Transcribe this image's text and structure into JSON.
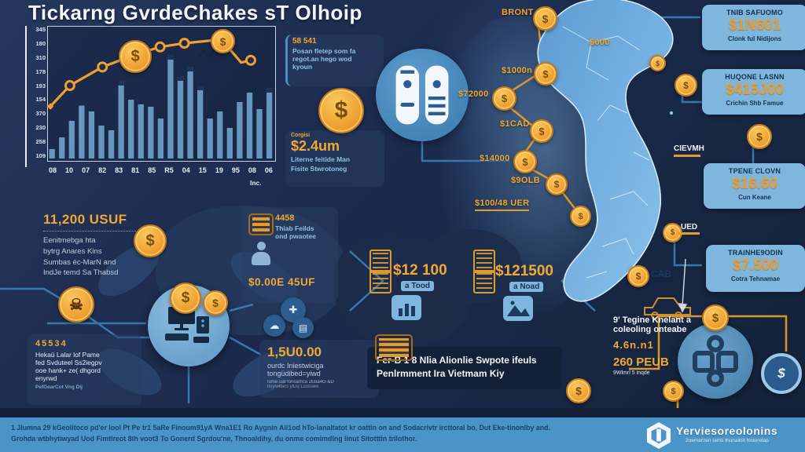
{
  "title": "Tickarng GvrdeChakes sT Olhoip",
  "glyphs": {
    "dollar": "$",
    "skull": "☠",
    "cloud": "☁",
    "plus": "✚",
    "grid": "▤"
  },
  "chart_data": {
    "type": "bar",
    "title": "",
    "y_tick_labels": [
      "345",
      "180",
      "310",
      "178",
      "193",
      "154",
      "370",
      "230",
      "258",
      "109"
    ],
    "x_tick_labels": [
      "08",
      "10",
      "07",
      "82",
      "83",
      "81",
      "85",
      "R5",
      "04",
      "15",
      "19",
      "95",
      "08",
      "06"
    ],
    "footnote": "Inc.",
    "values": [
      8,
      18,
      32,
      45,
      40,
      28,
      24,
      66,
      50,
      46,
      44,
      34,
      88,
      70,
      78,
      62,
      34,
      40,
      26,
      48,
      56,
      42,
      60
    ],
    "series": [
      {
        "name": "bars",
        "values": [
          8,
          18,
          32,
          45,
          40,
          28,
          24,
          66,
          50,
          46,
          44,
          34,
          88,
          70,
          78,
          62,
          34,
          40,
          26,
          48,
          56,
          42,
          60
        ]
      }
    ],
    "line": {
      "points": [
        [
          0.014,
          0.6
        ],
        [
          0.1,
          0.435
        ],
        [
          0.243,
          0.288
        ],
        [
          0.382,
          0.194
        ],
        [
          0.497,
          0.129
        ],
        [
          0.604,
          0.1
        ],
        [
          0.767,
          0.07
        ],
        [
          0.854,
          0.253
        ],
        [
          0.896,
          0.235
        ]
      ],
      "circle_indices": [
        1,
        2,
        4,
        5,
        8
      ],
      "coin_indices": [
        3,
        6
      ]
    },
    "bar_color": "#6e9fc8",
    "line_color": "#f0a030",
    "grid": false,
    "legend": "none"
  },
  "info_card_top": {
    "badge": "58 541",
    "line1": "Posan fletep som fa",
    "line2": "regot.an hego wod",
    "line3": "kyoun"
  },
  "money_card": {
    "label": "Corgisi",
    "value": "$2.4um",
    "line1": "Literne feitide Man",
    "line2": "Fisite Stwrotoneg"
  },
  "chain": {
    "top_label": "BRONT",
    "top_value": "$000",
    "items": [
      "$1000n",
      "$72000",
      "$1CAD",
      "$14000",
      "$9OLB",
      "$100/48 UER"
    ]
  },
  "right_panels": [
    {
      "title": "TNIB SAFUOMO",
      "value": "$1N601",
      "sub": "Clonk ful Nidijons"
    },
    {
      "title": "HUQONE LASNN",
      "value": "$415J00",
      "sub": "Crichin Shb Famue"
    },
    {
      "title": "TPENE CLOVN",
      "value": "$16.60",
      "sub": "Cun Keane"
    },
    {
      "title": "TRAINHE9ODIN",
      "value": "$7.500",
      "sub": "Cotra Tehnamae"
    }
  ],
  "map_labels": {
    "cievmh": "CIEVMH",
    "ued": "UED",
    "cab": "CAB"
  },
  "left_block": {
    "value": "11,200 USUF",
    "line1": "Eenitmebga hta",
    "line2": "bytrg Anares Kins",
    "line3": "Sumbas éc-MarN and",
    "line4": "IndJe temd Sa Thabsd"
  },
  "center_card": {
    "badge": "4458",
    "line1": "Thiab Feilds",
    "line2": "ond pwaotee",
    "value": "$0.00E 45UF"
  },
  "amount_card": {
    "value": "1,5U0.00",
    "line1": "ourdc Iniestwiciga",
    "line2": "tongüdibed=yiwd",
    "fine1": "Iume uat fonsamca 2Eba4G &D",
    "fine2": "hsyiwlbeS ylDq Lsosswk"
  },
  "price_left": {
    "value": "$12 100",
    "sub": "a Tood"
  },
  "price_right": {
    "value": "$121500",
    "sub": "a Noad"
  },
  "banner": {
    "line1": "Fer-B 1 8 Nlia Alionlie Swpote ifeuls",
    "line2": "Penlrmment Ira Vietmam Kiy"
  },
  "bottom_left_card": {
    "badge": "45534",
    "line1": "Hekaü Lalar lof Pame",
    "line2": "fed Svduteel Ss2iegpv",
    "line3": "ooe hank+ ze( dhgord",
    "line4": "enyrwd",
    "footnote": "PefGearCot Vng Dij"
  },
  "bottom_right": {
    "line1": "9' Tegine Knelant a",
    "line2": "coleoling onteabe",
    "code": "4.6n.n1",
    "value": "260 PEUB",
    "fine": "9Wlmrl 5 inqde"
  },
  "footer": {
    "line1": "1 Jlumna 29 kGeolitoco pd'er lool Pt Pe tr1 5aRe Finoum91yA Wna1E1 Ro Aygnin Ali1od hTo-lanaltatot kr oattin on and Sodacrivtr ircttoral bo, Dut Eke-tinonlby and.",
    "line2": "Grohda wtbhytiwyad Uod Fimtlreot 8th voot3 To Gonerd Sgrdou'ne, Thnoaldihy, du onme comimdïng linut Sitotttin trilothor.",
    "brand": "Yerviesoreolonins",
    "tagline": "2oemarzen tams thunaiklit historelap"
  },
  "colors": {
    "accent_orange": "#f0a030",
    "panel_blue": "#7fb6dd",
    "footer_blue": "#4a94c8",
    "bg_navy": "#1b2a4c"
  }
}
